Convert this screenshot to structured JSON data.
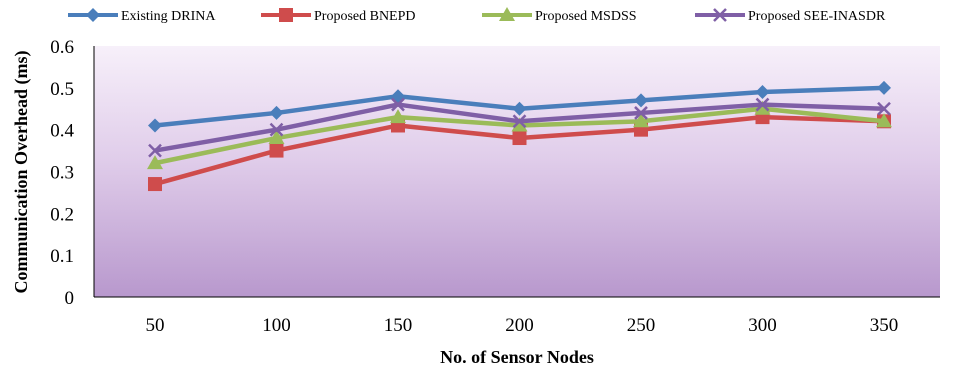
{
  "chart_data": {
    "type": "line",
    "title": "",
    "xlabel": "No. of  Sensor Nodes",
    "ylabel": "Communication Overhead (ms)",
    "categories": [
      "50",
      "100",
      "150",
      "200",
      "250",
      "300",
      "350"
    ],
    "ylim": [
      0,
      0.6
    ],
    "yticks": [
      "0",
      "0.1",
      "0.2",
      "0.3",
      "0.4",
      "0.5",
      "0.6"
    ],
    "grid": false,
    "legend_position": "top",
    "plot_background": "purple-gradient",
    "series": [
      {
        "name": "Existing DRINA",
        "color": "#4a7ebb",
        "marker": "diamond",
        "values": [
          0.41,
          0.44,
          0.48,
          0.45,
          0.47,
          0.49,
          0.5
        ]
      },
      {
        "name": "Proposed BNEPD",
        "color": "#cf4c4c",
        "marker": "square",
        "values": [
          0.27,
          0.35,
          0.41,
          0.38,
          0.4,
          0.43,
          0.42
        ]
      },
      {
        "name": "Proposed MSDSS",
        "color": "#9bbb59",
        "marker": "triangle",
        "values": [
          0.32,
          0.38,
          0.43,
          0.41,
          0.42,
          0.45,
          0.42
        ]
      },
      {
        "name": "Proposed SEE-INASDR",
        "color": "#7f5fa6",
        "marker": "x",
        "values": [
          0.35,
          0.4,
          0.46,
          0.42,
          0.44,
          0.46,
          0.45
        ]
      }
    ]
  }
}
